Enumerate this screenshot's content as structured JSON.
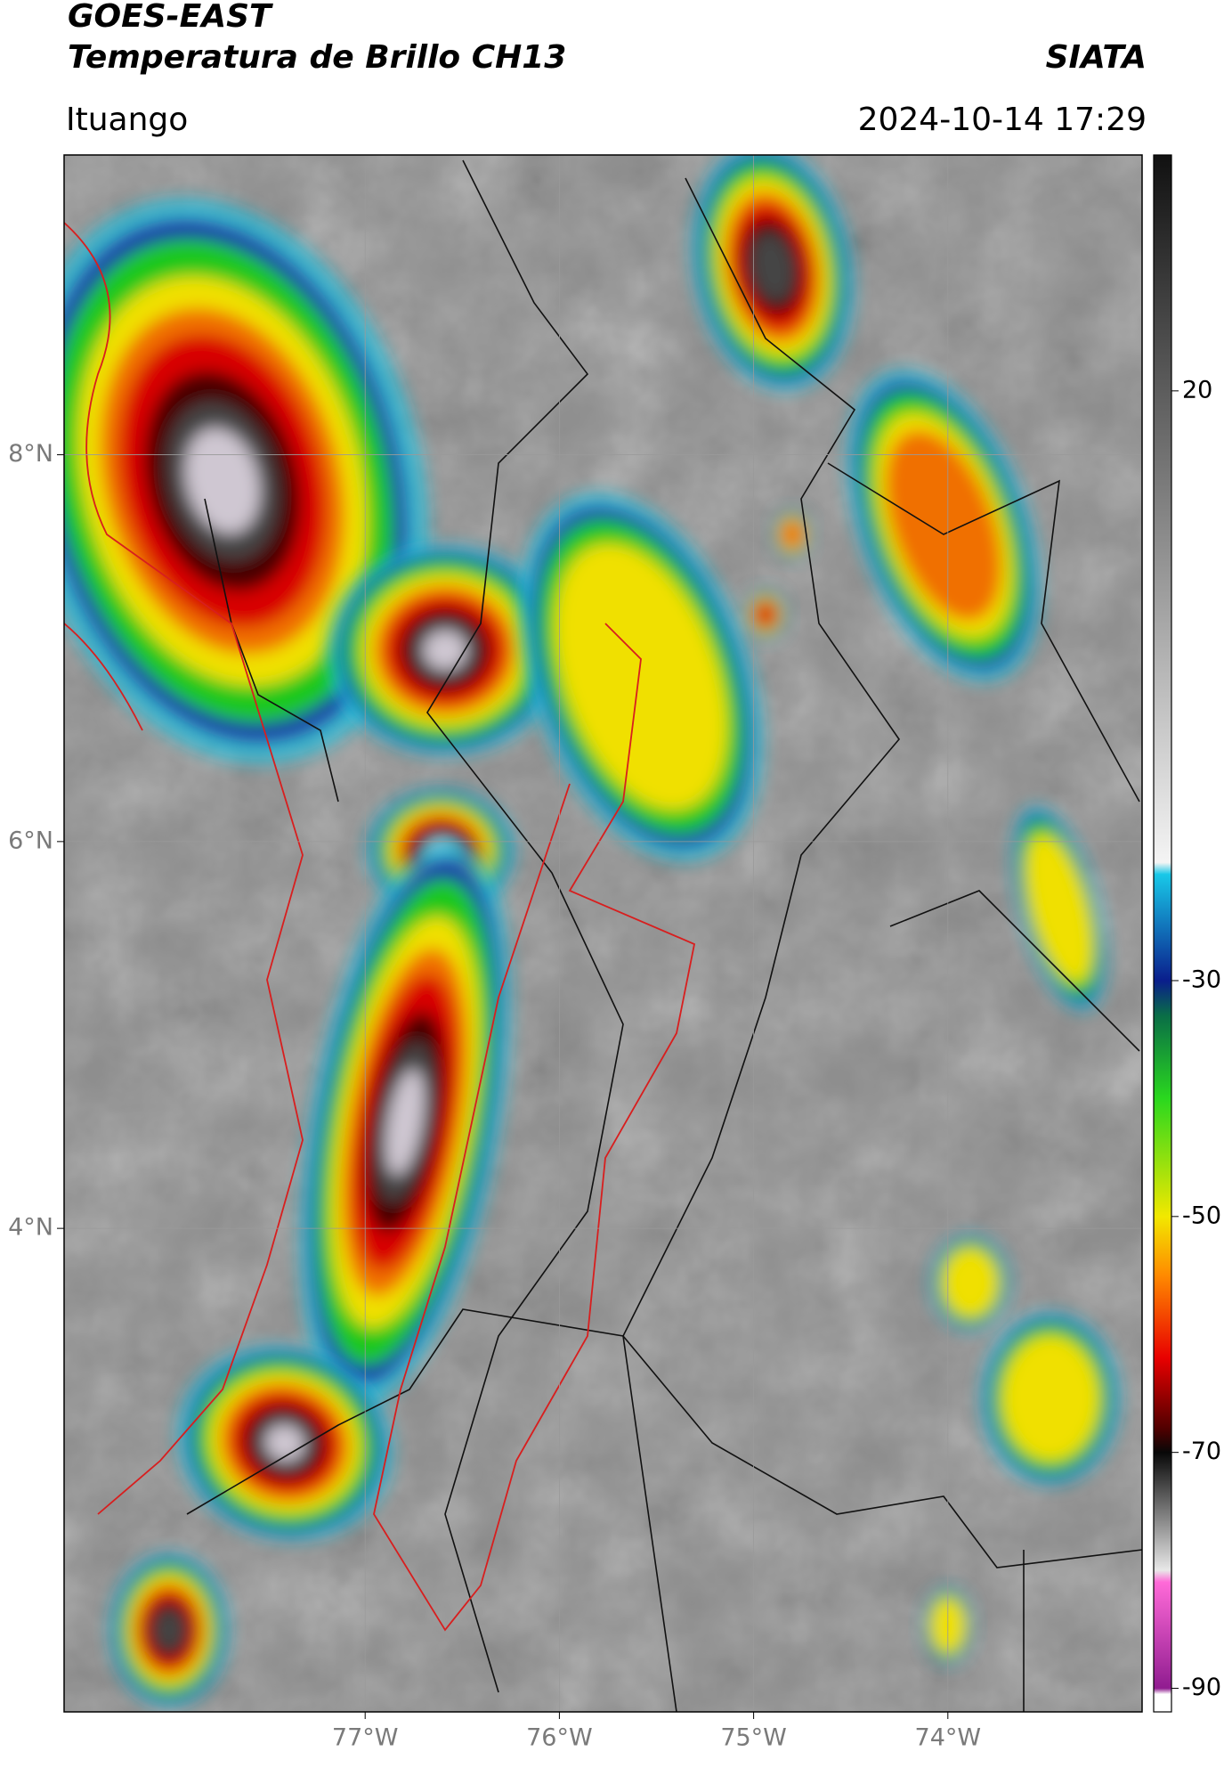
{
  "header": {
    "title": "GOES-EAST",
    "subtitle": "Temperatura de Brillo CH13",
    "organization": "SIATA",
    "location": "Ituango",
    "datetime": "2024-10-14 17:29"
  },
  "map": {
    "xlim": [
      -78.55,
      -73.0
    ],
    "ylim": [
      1.5,
      9.55
    ],
    "xticks": [
      {
        "value": -77,
        "label": "77°W"
      },
      {
        "value": -76,
        "label": "76°W"
      },
      {
        "value": -75,
        "label": "75°W"
      },
      {
        "value": -74,
        "label": "74°W"
      }
    ],
    "yticks": [
      {
        "value": 8,
        "label": "8°N"
      },
      {
        "value": 6,
        "label": "6°N"
      },
      {
        "value": 4,
        "label": "4°N"
      }
    ],
    "grid": true
  },
  "colorbar": {
    "clim": [
      -92,
      40
    ],
    "ticks": [
      20,
      -30,
      -50,
      -70,
      -90
    ],
    "colorscale": [
      [
        40,
        "#111111"
      ],
      [
        -20,
        "#f4f4f4"
      ],
      [
        -21,
        "#18c8e8"
      ],
      [
        -30,
        "#0a1e8c"
      ],
      [
        -33,
        "#0a6e46"
      ],
      [
        -40,
        "#2ad81e"
      ],
      [
        -50,
        "#f2e800"
      ],
      [
        -55,
        "#ff8a00"
      ],
      [
        -62,
        "#e80000"
      ],
      [
        -68,
        "#500000"
      ],
      [
        -70,
        "#080808"
      ],
      [
        -80,
        "#e8e8e8"
      ],
      [
        -81,
        "#ff6ad8"
      ],
      [
        -90,
        "#901c90"
      ],
      [
        -90.5,
        "#ffffff"
      ]
    ]
  }
}
